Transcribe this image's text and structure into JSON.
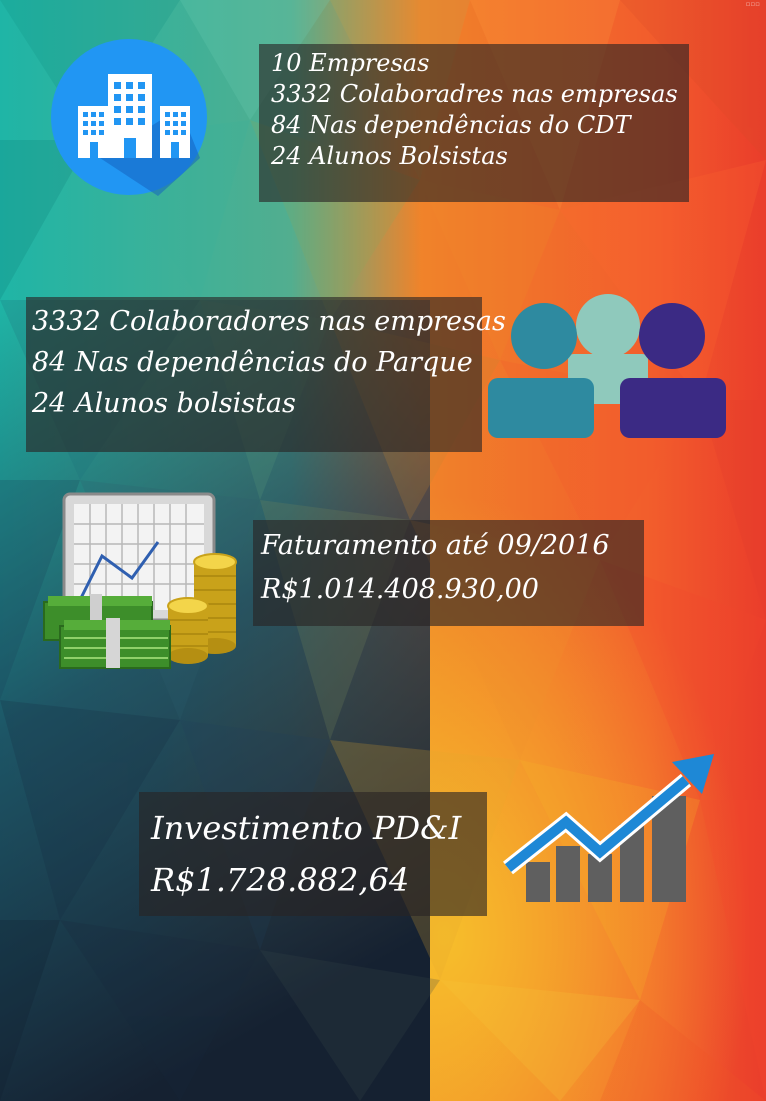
{
  "block_company": {
    "lines": [
      "10 Empresas",
      "3332 Colaboradres nas empresas",
      "84 Nas dependências do CDT",
      "24 Alunos Bolsistas"
    ],
    "icon": "building-icon"
  },
  "block_people": {
    "lines": [
      "3332 Colaboradores nas empresas",
      "84 Nas dependências do Parque",
      "24 Alunos bolsistas"
    ],
    "icon": "people-icon"
  },
  "block_revenue": {
    "lines": [
      "Faturamento até 09/2016",
      "R$1.014.408.930,00"
    ],
    "icon": "money-chart-icon"
  },
  "block_investment": {
    "lines": [
      "Investimento PD&I",
      "R$1.728.882,64"
    ],
    "icon": "growth-chart-icon"
  },
  "colors": {
    "teal": "#2bb6a2",
    "orange": "#f47a25",
    "red": "#e8432e",
    "navy": "#1f2f45",
    "yellow": "#f5b52a"
  }
}
